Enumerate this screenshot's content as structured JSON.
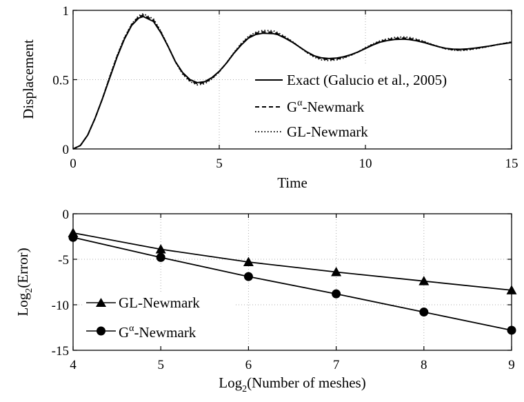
{
  "chart_data": [
    {
      "type": "line",
      "title": "",
      "xlabel": "Time",
      "ylabel": "Displacement",
      "xlim": [
        0,
        15
      ],
      "ylim": [
        0,
        1
      ],
      "xticks": [
        "0",
        "5",
        "10",
        "15"
      ],
      "yticks": [
        "0",
        "0.5",
        "1"
      ],
      "grid": true,
      "legend_position": "right",
      "series": [
        {
          "name": "Exact (Galucio et al., 2005)",
          "style": "solid",
          "x": [
            0,
            0.25,
            0.5,
            0.75,
            1,
            1.25,
            1.5,
            1.75,
            2,
            2.25,
            2.4,
            2.75,
            3,
            3.25,
            3.5,
            3.75,
            4,
            4.25,
            4.5,
            4.75,
            5,
            5.25,
            5.5,
            5.75,
            6,
            6.25,
            6.5,
            6.85,
            7,
            7.25,
            7.5,
            7.75,
            8,
            8.25,
            8.5,
            8.75,
            9,
            9.25,
            9.5,
            9.75,
            10,
            10.25,
            10.5,
            10.75,
            11,
            11.3,
            11.5,
            11.75,
            12,
            12.25,
            12.5,
            12.75,
            13,
            13.25,
            13.5,
            13.75,
            14,
            14.25,
            14.5,
            14.75,
            15
          ],
          "values": [
            0,
            0.025,
            0.1,
            0.22,
            0.36,
            0.51,
            0.66,
            0.79,
            0.89,
            0.945,
            0.955,
            0.92,
            0.84,
            0.74,
            0.63,
            0.55,
            0.5,
            0.478,
            0.485,
            0.515,
            0.56,
            0.62,
            0.69,
            0.75,
            0.8,
            0.826,
            0.835,
            0.832,
            0.825,
            0.8,
            0.77,
            0.735,
            0.7,
            0.672,
            0.657,
            0.652,
            0.655,
            0.665,
            0.68,
            0.7,
            0.725,
            0.75,
            0.77,
            0.782,
            0.79,
            0.792,
            0.789,
            0.78,
            0.768,
            0.752,
            0.738,
            0.726,
            0.72,
            0.719,
            0.722,
            0.728,
            0.735,
            0.743,
            0.752,
            0.76,
            0.768
          ]
        },
        {
          "name": "G-Newmark",
          "name_superscript": "α",
          "style": "dashed",
          "x": [
            0,
            0.25,
            0.5,
            0.75,
            1,
            1.25,
            1.5,
            1.75,
            2,
            2.25,
            2.4,
            2.75,
            3,
            3.25,
            3.5,
            3.75,
            4,
            4.25,
            4.5,
            4.75,
            5,
            5.25,
            5.5,
            5.75,
            6,
            6.25,
            6.5,
            6.85,
            7,
            7.25,
            7.5,
            7.75,
            8,
            8.25,
            8.5,
            8.75,
            9,
            9.25,
            9.5,
            9.75,
            10,
            10.25,
            10.5,
            10.75,
            11,
            11.3,
            11.5,
            11.75,
            12,
            12.25,
            12.5,
            12.75,
            13,
            13.25,
            13.5,
            13.75,
            14,
            14.25,
            14.5,
            14.75,
            15
          ],
          "values": [
            0,
            0.025,
            0.1,
            0.22,
            0.36,
            0.515,
            0.665,
            0.795,
            0.895,
            0.955,
            0.965,
            0.93,
            0.845,
            0.74,
            0.63,
            0.545,
            0.492,
            0.47,
            0.478,
            0.51,
            0.558,
            0.62,
            0.69,
            0.755,
            0.805,
            0.835,
            0.845,
            0.842,
            0.832,
            0.805,
            0.772,
            0.735,
            0.698,
            0.668,
            0.65,
            0.645,
            0.648,
            0.66,
            0.678,
            0.7,
            0.727,
            0.753,
            0.775,
            0.788,
            0.797,
            0.8,
            0.797,
            0.786,
            0.772,
            0.754,
            0.738,
            0.724,
            0.716,
            0.714,
            0.718,
            0.725,
            0.733,
            0.742,
            0.752,
            0.761,
            0.77
          ]
        },
        {
          "name": "GL-Newmark",
          "style": "dotted",
          "x": [
            0,
            0.25,
            0.5,
            0.75,
            1,
            1.25,
            1.5,
            1.75,
            2,
            2.25,
            2.4,
            2.75,
            3,
            3.25,
            3.5,
            3.75,
            4,
            4.25,
            4.5,
            4.75,
            5,
            5.25,
            5.5,
            5.75,
            6,
            6.25,
            6.5,
            6.85,
            7,
            7.25,
            7.5,
            7.75,
            8,
            8.25,
            8.5,
            8.75,
            9,
            9.25,
            9.5,
            9.75,
            10,
            10.25,
            10.5,
            10.75,
            11,
            11.3,
            11.5,
            11.75,
            12,
            12.25,
            12.5,
            12.75,
            13,
            13.25,
            13.5,
            13.75,
            14,
            14.25,
            14.5,
            14.75,
            15
          ],
          "values": [
            0,
            0.025,
            0.1,
            0.22,
            0.36,
            0.52,
            0.67,
            0.8,
            0.9,
            0.962,
            0.975,
            0.938,
            0.85,
            0.742,
            0.628,
            0.54,
            0.486,
            0.462,
            0.47,
            0.505,
            0.556,
            0.622,
            0.694,
            0.76,
            0.812,
            0.842,
            0.855,
            0.852,
            0.84,
            0.81,
            0.775,
            0.735,
            0.695,
            0.662,
            0.643,
            0.638,
            0.642,
            0.655,
            0.675,
            0.7,
            0.73,
            0.757,
            0.78,
            0.795,
            0.804,
            0.808,
            0.805,
            0.792,
            0.776,
            0.756,
            0.738,
            0.722,
            0.713,
            0.71,
            0.714,
            0.722,
            0.731,
            0.741,
            0.752,
            0.762,
            0.772
          ]
        }
      ]
    },
    {
      "type": "line",
      "title": "",
      "xlabel": "Log",
      "xlabel_subscript": "2",
      "xlabel_rest": "(Number of meshes)",
      "ylabel": "Log",
      "ylabel_subscript": "2",
      "ylabel_rest": "(Error)",
      "xlim": [
        4,
        9
      ],
      "ylim": [
        -15,
        0
      ],
      "xticks": [
        "4",
        "5",
        "6",
        "7",
        "8",
        "9"
      ],
      "yticks": [
        "0",
        "-5",
        "-10",
        "-15"
      ],
      "grid": true,
      "legend_position": "bottom-left",
      "series": [
        {
          "name": "GL-Newmark",
          "marker": "triangle",
          "x": [
            4,
            5,
            6,
            7,
            8,
            9
          ],
          "values": [
            -2.1,
            -3.9,
            -5.3,
            -6.4,
            -7.4,
            -8.4
          ]
        },
        {
          "name": "G-Newmark",
          "name_superscript": "α",
          "marker": "circle",
          "x": [
            4,
            5,
            6,
            7,
            8,
            9
          ],
          "values": [
            -2.6,
            -4.8,
            -6.9,
            -8.8,
            -10.8,
            -12.8
          ]
        }
      ]
    }
  ]
}
